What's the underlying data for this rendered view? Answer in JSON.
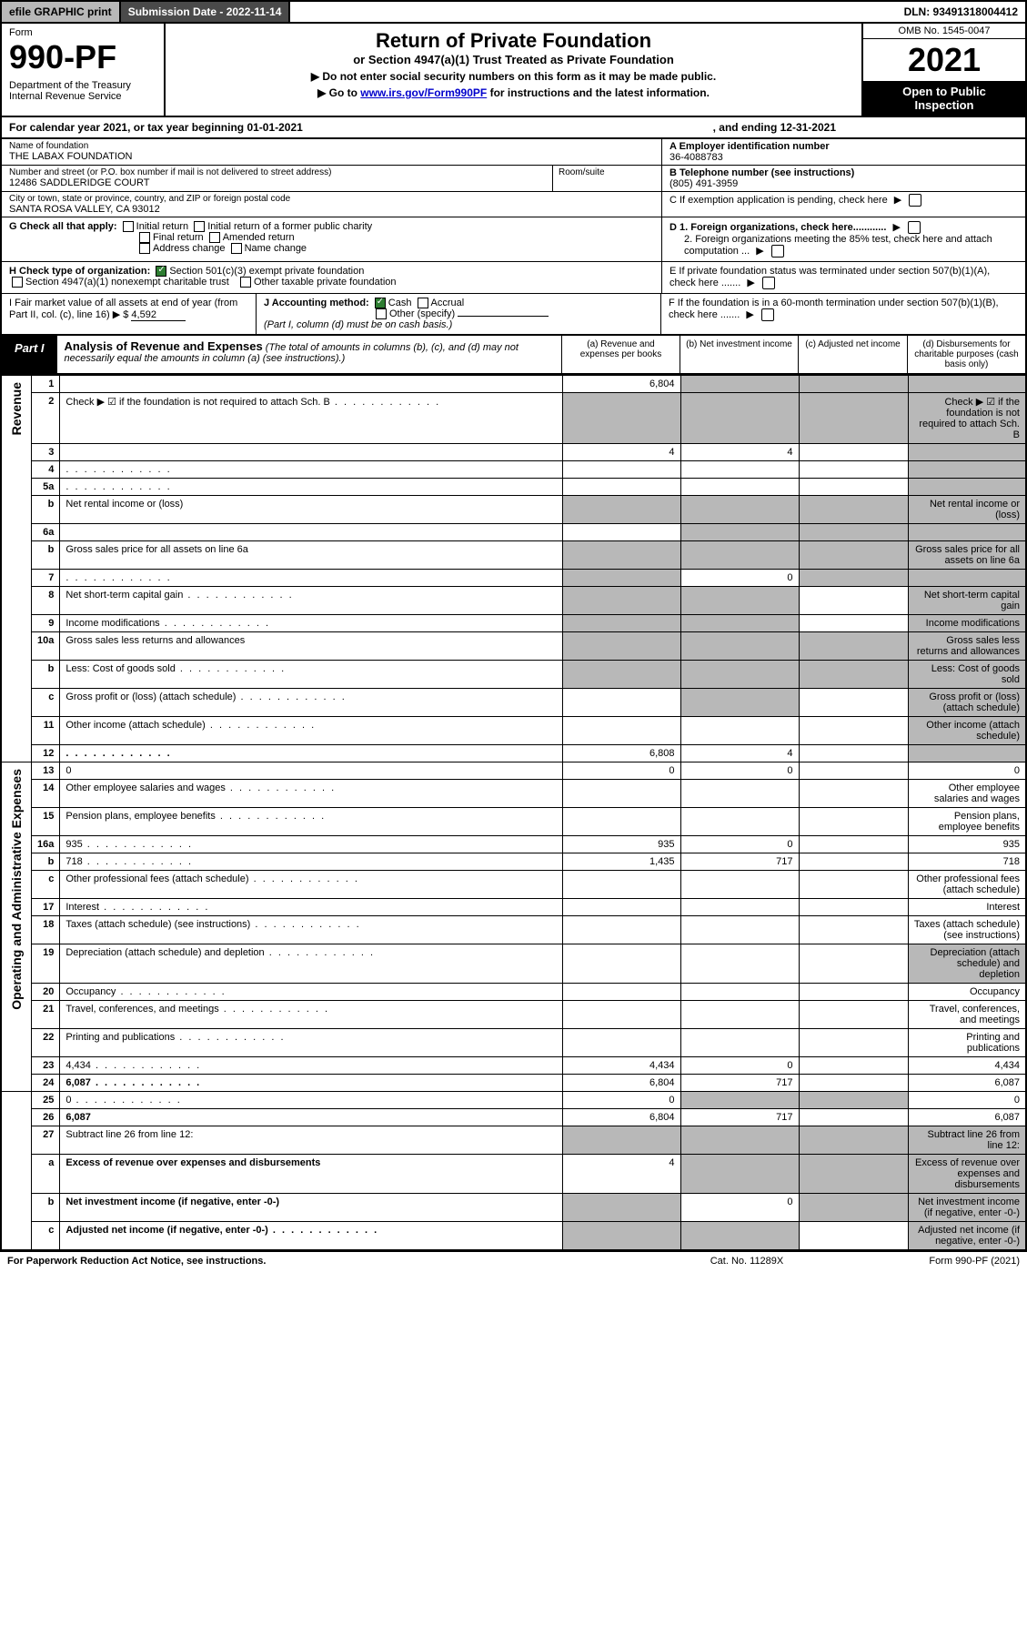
{
  "topbar": {
    "efile": "efile GRAPHIC print",
    "submission": "Submission Date - 2022-11-14",
    "dln": "DLN: 93491318004412"
  },
  "header": {
    "form_label": "Form",
    "form_no": "990-PF",
    "dept": "Department of the Treasury\nInternal Revenue Service",
    "title": "Return of Private Foundation",
    "subtitle": "or Section 4947(a)(1) Trust Treated as Private Foundation",
    "instr1": "▶ Do not enter social security numbers on this form as it may be made public.",
    "instr2_pre": "▶ Go to ",
    "instr2_link": "www.irs.gov/Form990PF",
    "instr2_post": " for instructions and the latest information.",
    "omb": "OMB No. 1545-0047",
    "year": "2021",
    "openpub": "Open to Public\nInspection"
  },
  "calyear": {
    "left": "For calendar year 2021, or tax year beginning 01-01-2021",
    "right": ", and ending 12-31-2021"
  },
  "entity": {
    "name_lbl": "Name of foundation",
    "name": "THE LABAX FOUNDATION",
    "ein_lbl": "A Employer identification number",
    "ein": "36-4088783",
    "addr_lbl": "Number and street (or P.O. box number if mail is not delivered to street address)",
    "addr": "12486 SADDLERIDGE COURT",
    "room_lbl": "Room/suite",
    "tel_lbl": "B Telephone number (see instructions)",
    "tel": "(805) 491-3959",
    "city_lbl": "City or town, state or province, country, and ZIP or foreign postal code",
    "city": "SANTA ROSA VALLEY, CA  93012",
    "c_lbl": "C If exemption application is pending, check here"
  },
  "g": {
    "label": "G Check all that apply:",
    "opts": [
      "Initial return",
      "Initial return of a former public charity",
      "Final return",
      "Amended return",
      "Address change",
      "Name change"
    ]
  },
  "h": {
    "label": "H Check type of organization:",
    "opt1": "Section 501(c)(3) exempt private foundation",
    "opt2": "Section 4947(a)(1) nonexempt charitable trust",
    "opt3": "Other taxable private foundation"
  },
  "d": {
    "d1": "D 1. Foreign organizations, check here............",
    "d2": "2. Foreign organizations meeting the 85% test, check here and attach computation ..."
  },
  "e": "E  If private foundation status was terminated under section 507(b)(1)(A), check here .......",
  "f": "F  If the foundation is in a 60-month termination under section 507(b)(1)(B), check here .......",
  "i": {
    "label": "I Fair market value of all assets at end of year (from Part II, col. (c), line 16) ▶ $",
    "value": "4,592"
  },
  "j": {
    "label": "J Accounting method:",
    "cash": "Cash",
    "accrual": "Accrual",
    "other": "Other (specify)",
    "note": "(Part I, column (d) must be on cash basis.)"
  },
  "part1": {
    "tab": "Part I",
    "title": "Analysis of Revenue and Expenses",
    "sub": "(The total of amounts in columns (b), (c), and (d) may not necessarily equal the amounts in column (a) (see instructions).)",
    "cols": {
      "a": "(a)  Revenue and expenses per books",
      "b": "(b)  Net investment income",
      "c": "(c)  Adjusted net income",
      "d": "(d)  Disbursements for charitable purposes (cash basis only)"
    }
  },
  "sidelabels": {
    "revenue": "Revenue",
    "expenses": "Operating and Administrative Expenses"
  },
  "rows": [
    {
      "n": "1",
      "d": "",
      "a": "6,804",
      "b": "",
      "c": "",
      "shade_bcd": true
    },
    {
      "n": "2",
      "d": "Check ▶ ☑ if the foundation is not required to attach Sch. B",
      "dotted": true,
      "blank": true
    },
    {
      "n": "3",
      "d": "",
      "a": "4",
      "b": "4",
      "c": "",
      "shade_d": true
    },
    {
      "n": "4",
      "d": "",
      "dotted": true,
      "a": "",
      "b": "",
      "c": "",
      "shade_d": true
    },
    {
      "n": "5a",
      "d": "",
      "dotted": true,
      "a": "",
      "b": "",
      "c": "",
      "shade_d": true
    },
    {
      "n": "b",
      "d": "Net rental income or (loss)",
      "blank": true,
      "shade_all": true
    },
    {
      "n": "6a",
      "d": "",
      "a": "",
      "b": "",
      "c": "",
      "shade_bcd": true
    },
    {
      "n": "b",
      "d": "Gross sales price for all assets on line 6a",
      "blank": true,
      "shade_all": true
    },
    {
      "n": "7",
      "d": "",
      "dotted": true,
      "a": "",
      "b": "0",
      "c": "",
      "shade_a": true,
      "shade_cd": true
    },
    {
      "n": "8",
      "d": "Net short-term capital gain",
      "dotted": true,
      "shade_ab": true,
      "shade_d": true
    },
    {
      "n": "9",
      "d": "Income modifications",
      "dotted": true,
      "shade_ab": true,
      "shade_d": true
    },
    {
      "n": "10a",
      "d": "Gross sales less returns and allowances",
      "blank": true,
      "shade_all": true
    },
    {
      "n": "b",
      "d": "Less: Cost of goods sold",
      "dotted": true,
      "blank": true,
      "shade_all": true
    },
    {
      "n": "c",
      "d": "Gross profit or (loss) (attach schedule)",
      "dotted": true,
      "shade_b": true,
      "shade_d": true
    },
    {
      "n": "11",
      "d": "Other income (attach schedule)",
      "dotted": true,
      "shade_d": true
    },
    {
      "n": "12",
      "d": "",
      "dotted": true,
      "bold": true,
      "a": "6,808",
      "b": "4",
      "c": "",
      "shade_d": true
    },
    {
      "n": "13",
      "d": "0",
      "a": "0",
      "b": "0",
      "c": ""
    },
    {
      "n": "14",
      "d": "Other employee salaries and wages",
      "dotted": true
    },
    {
      "n": "15",
      "d": "Pension plans, employee benefits",
      "dotted": true
    },
    {
      "n": "16a",
      "d": "935",
      "dotted": true,
      "a": "935",
      "b": "0",
      "c": ""
    },
    {
      "n": "b",
      "d": "718",
      "dotted": true,
      "a": "1,435",
      "b": "717",
      "c": ""
    },
    {
      "n": "c",
      "d": "Other professional fees (attach schedule)",
      "dotted": true
    },
    {
      "n": "17",
      "d": "Interest",
      "dotted": true
    },
    {
      "n": "18",
      "d": "Taxes (attach schedule) (see instructions)",
      "dotted": true
    },
    {
      "n": "19",
      "d": "Depreciation (attach schedule) and depletion",
      "dotted": true,
      "shade_d": true
    },
    {
      "n": "20",
      "d": "Occupancy",
      "dotted": true
    },
    {
      "n": "21",
      "d": "Travel, conferences, and meetings",
      "dotted": true
    },
    {
      "n": "22",
      "d": "Printing and publications",
      "dotted": true
    },
    {
      "n": "23",
      "d": "4,434",
      "dotted": true,
      "a": "4,434",
      "b": "0",
      "c": ""
    },
    {
      "n": "24",
      "d": "6,087",
      "dotted": true,
      "bold": true,
      "a": "6,804",
      "b": "717",
      "c": ""
    },
    {
      "n": "25",
      "d": "0",
      "dotted": true,
      "a": "0",
      "b": "",
      "c": "",
      "shade_bc": true
    },
    {
      "n": "26",
      "d": "6,087",
      "bold": true,
      "a": "6,804",
      "b": "717",
      "c": "",
      "shade_c": false
    },
    {
      "n": "27",
      "d": "Subtract line 26 from line 12:",
      "shade_all": true
    },
    {
      "n": "a",
      "d": "Excess of revenue over expenses and disbursements",
      "bold": true,
      "a": "4",
      "shade_bcd": true
    },
    {
      "n": "b",
      "d": "Net investment income (if negative, enter -0-)",
      "bold": true,
      "b": "0",
      "shade_a": true,
      "shade_cd": true
    },
    {
      "n": "c",
      "d": "Adjusted net income (if negative, enter -0-)",
      "dotted": true,
      "bold": true,
      "shade_ab": true,
      "shade_d": true
    }
  ],
  "footer": {
    "left": "For Paperwork Reduction Act Notice, see instructions.",
    "center": "Cat. No. 11289X",
    "right": "Form 990-PF (2021)"
  }
}
